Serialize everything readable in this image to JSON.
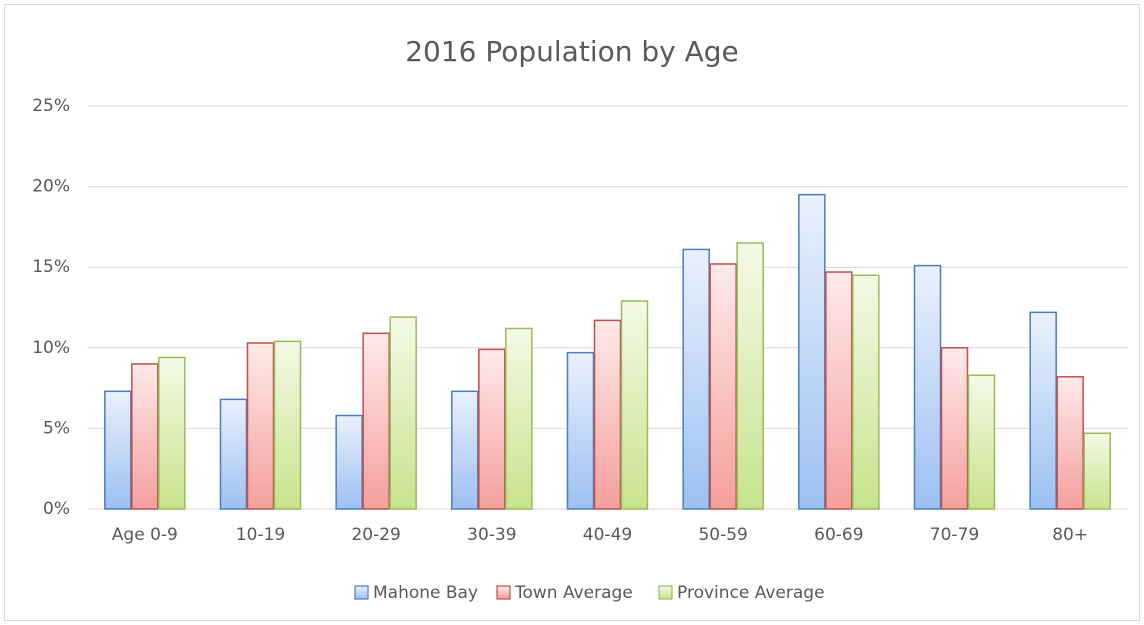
{
  "chart_data": {
    "type": "bar",
    "title": "2016 Population by Age",
    "categories": [
      "Age 0-9",
      "10-19",
      "20-29",
      "30-39",
      "40-49",
      "50-59",
      "60-69",
      "70-79",
      "80+"
    ],
    "series": [
      {
        "name": "Mahone Bay",
        "color": "#4a7ebb",
        "values": [
          7.3,
          6.8,
          5.8,
          7.3,
          9.7,
          16.1,
          19.5,
          15.1,
          12.2
        ]
      },
      {
        "name": "Town Average",
        "color": "#c0504d",
        "values": [
          9.0,
          10.3,
          10.9,
          9.9,
          11.7,
          15.2,
          14.7,
          10.0,
          8.2
        ]
      },
      {
        "name": "Province Average",
        "color": "#9bbb59",
        "values": [
          9.4,
          10.4,
          11.9,
          11.2,
          12.9,
          16.5,
          14.5,
          8.3,
          4.7
        ]
      }
    ],
    "ylim": [
      0,
      25
    ],
    "yticks": [
      {
        "value": 0,
        "label": "0%"
      },
      {
        "value": 5,
        "label": "5%"
      },
      {
        "value": 10,
        "label": "10%"
      },
      {
        "value": 15,
        "label": "15%"
      },
      {
        "value": 20,
        "label": "20%"
      },
      {
        "value": 25,
        "label": "25%"
      }
    ],
    "grid": true,
    "legend": "bottom"
  }
}
